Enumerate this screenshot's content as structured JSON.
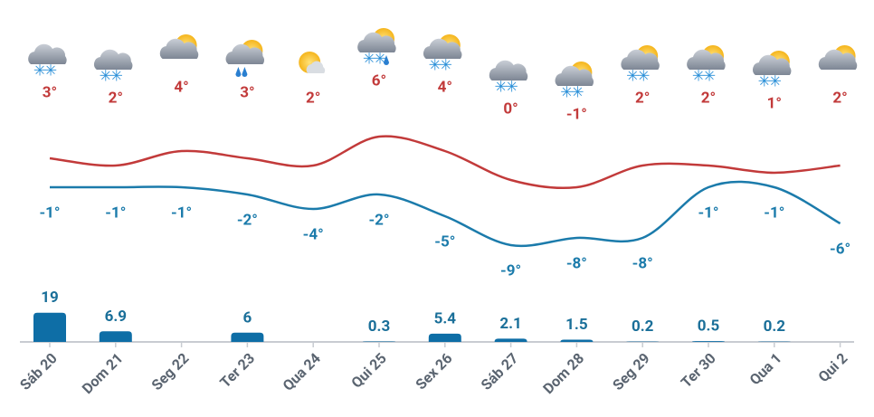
{
  "chart_data": {
    "type": "line",
    "categories": [
      "Sáb 20",
      "Dom 21",
      "Seg 22",
      "Ter 23",
      "Qua 24",
      "Qui 25",
      "Sex 26",
      "Sáb 27",
      "Dom 28",
      "Seg 29",
      "Ter 30",
      "Qua 1",
      "Qui 2"
    ],
    "series": [
      {
        "color": "#c23a3a",
        "values": [
          3,
          2,
          4,
          3,
          2,
          6,
          4,
          0,
          -1,
          2,
          2,
          1,
          2
        ],
        "value_labels": [
          "3°",
          "2°",
          "4°",
          "3°",
          "2°",
          "6°",
          "4°",
          "0°",
          "-1°",
          "2°",
          "2°",
          "1°",
          "2°"
        ]
      },
      {
        "color": "#1b7bab",
        "values": [
          -1,
          -1,
          -1,
          -2,
          -4,
          -2,
          -5,
          -9,
          -8,
          -8,
          -1,
          -1,
          -6
        ],
        "value_labels": [
          "-1°",
          "-1°",
          "-1°",
          "-2°",
          "-4°",
          "-2°",
          "-5°",
          "-9°",
          "-8°",
          "-8°",
          "-1°",
          "-1°",
          "-6°"
        ]
      },
      {
        "type": "bar",
        "color": "#0e6ea6",
        "values": [
          19,
          6.9,
          null,
          6,
          null,
          0.3,
          5.4,
          2.1,
          1.5,
          0.2,
          0.5,
          0.2,
          null
        ]
      }
    ]
  }
}
